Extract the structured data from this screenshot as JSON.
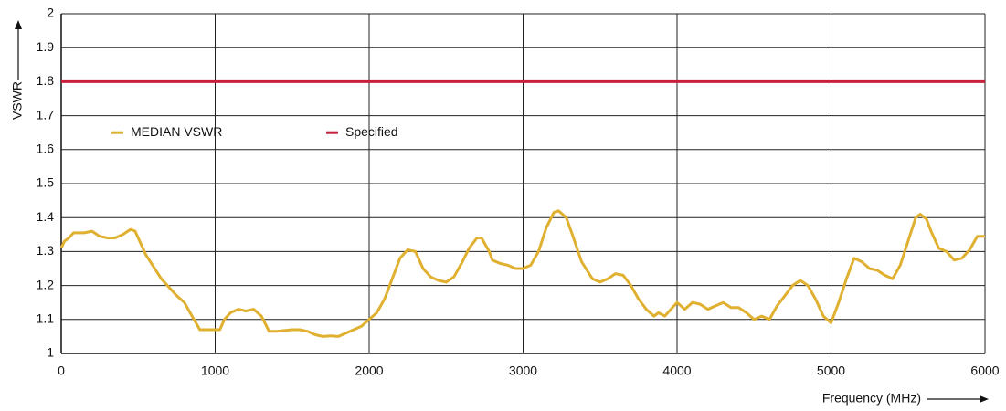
{
  "chart_data": {
    "type": "line",
    "x_label": "Frequency (MHz)",
    "y_label": "VSWR",
    "xlim": [
      0,
      6000
    ],
    "ylim": [
      1,
      2
    ],
    "xticks": [
      0,
      1000,
      2000,
      3000,
      4000,
      5000,
      6000
    ],
    "yticks": [
      1,
      1.1,
      1.2,
      1.3,
      1.4,
      1.5,
      1.6,
      1.7,
      1.8,
      1.9,
      2
    ],
    "grid": true,
    "legend": "upper left",
    "series": [
      {
        "name": "MEDIAN VSWR",
        "color": "#e0b030",
        "x": [
          0,
          20,
          50,
          80,
          120,
          150,
          200,
          250,
          300,
          350,
          400,
          450,
          480,
          550,
          650,
          750,
          800,
          850,
          900,
          1000,
          1030,
          1060,
          1100,
          1150,
          1200,
          1250,
          1300,
          1350,
          1400,
          1500,
          1550,
          1600,
          1650,
          1700,
          1750,
          1800,
          1850,
          1900,
          1950,
          2000,
          2050,
          2100,
          2150,
          2200,
          2250,
          2300,
          2350,
          2400,
          2450,
          2500,
          2550,
          2600,
          2650,
          2700,
          2730,
          2780,
          2800,
          2850,
          2900,
          2950,
          3000,
          3050,
          3100,
          3150,
          3200,
          3230,
          3280,
          3320,
          3380,
          3450,
          3500,
          3550,
          3600,
          3650,
          3700,
          3750,
          3800,
          3850,
          3880,
          3920,
          3960,
          4000,
          4050,
          4100,
          4150,
          4200,
          4250,
          4300,
          4350,
          4400,
          4450,
          4500,
          4550,
          4600,
          4650,
          4700,
          4750,
          4800,
          4850,
          4900,
          4950,
          5000,
          5050,
          5100,
          5150,
          5200,
          5250,
          5300,
          5350,
          5400,
          5450,
          5500,
          5550,
          5580,
          5620,
          5650,
          5700,
          5750,
          5800,
          5850,
          5900,
          5950,
          6000
        ],
        "values": [
          1.31,
          1.33,
          1.34,
          1.355,
          1.355,
          1.355,
          1.36,
          1.345,
          1.34,
          1.34,
          1.35,
          1.365,
          1.36,
          1.29,
          1.22,
          1.17,
          1.15,
          1.11,
          1.07,
          1.07,
          1.07,
          1.1,
          1.12,
          1.13,
          1.125,
          1.13,
          1.11,
          1.065,
          1.065,
          1.07,
          1.07,
          1.065,
          1.055,
          1.05,
          1.052,
          1.05,
          1.06,
          1.07,
          1.08,
          1.1,
          1.12,
          1.16,
          1.22,
          1.28,
          1.305,
          1.3,
          1.25,
          1.225,
          1.215,
          1.21,
          1.225,
          1.265,
          1.31,
          1.34,
          1.34,
          1.3,
          1.275,
          1.265,
          1.26,
          1.25,
          1.25,
          1.26,
          1.3,
          1.37,
          1.415,
          1.42,
          1.4,
          1.35,
          1.27,
          1.22,
          1.21,
          1.22,
          1.235,
          1.23,
          1.2,
          1.16,
          1.13,
          1.11,
          1.12,
          1.11,
          1.13,
          1.15,
          1.13,
          1.15,
          1.145,
          1.13,
          1.14,
          1.15,
          1.135,
          1.135,
          1.12,
          1.1,
          1.11,
          1.1,
          1.14,
          1.17,
          1.2,
          1.215,
          1.2,
          1.16,
          1.11,
          1.09,
          1.15,
          1.22,
          1.28,
          1.27,
          1.25,
          1.245,
          1.23,
          1.22,
          1.26,
          1.33,
          1.4,
          1.41,
          1.395,
          1.36,
          1.31,
          1.3,
          1.275,
          1.28,
          1.305,
          1.345,
          1.345
        ]
      },
      {
        "name": "Specified",
        "color": "#c8203c",
        "x": [
          0,
          6000
        ],
        "values": [
          1.8,
          1.8
        ]
      }
    ]
  }
}
